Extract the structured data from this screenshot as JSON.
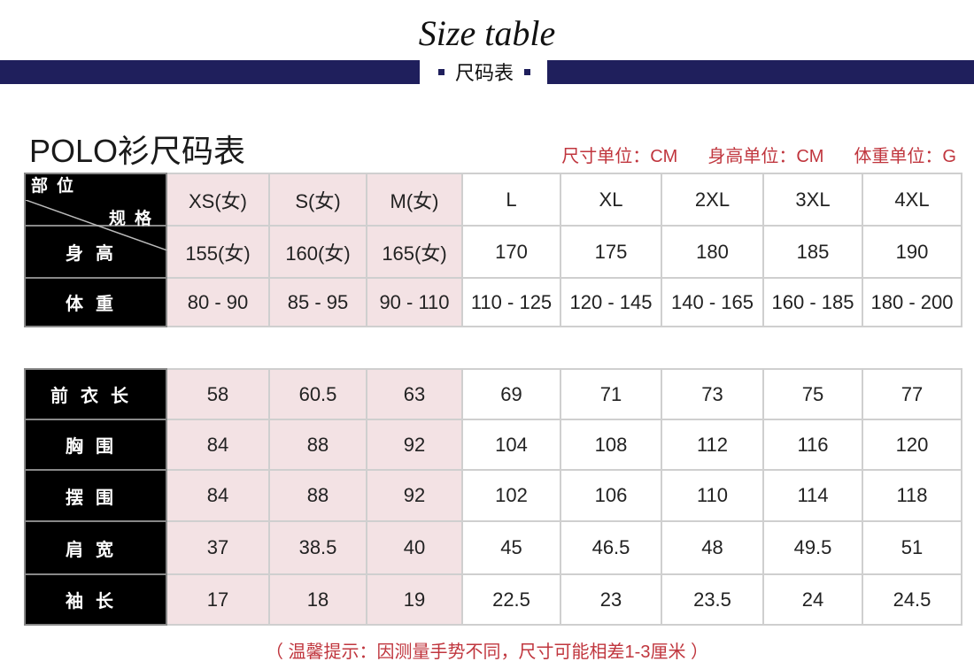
{
  "header": {
    "title_en": "Size table",
    "title_cn": "尺码表"
  },
  "table_title": "POLO衫尺码表",
  "units": [
    "尺寸单位：CM",
    "身高单位：CM",
    "体重单位：G"
  ],
  "corner": {
    "top": "规格",
    "bottom": "部位"
  },
  "sizes": [
    "XS(女)",
    "S(女)",
    "M(女)",
    "L",
    "XL",
    "2XL",
    "3XL",
    "4XL"
  ],
  "table1": [
    {
      "label": "身高",
      "values": [
        "155(女)",
        "160(女)",
        "165(女)",
        "170",
        "175",
        "180",
        "185",
        "190"
      ]
    },
    {
      "label": "体重",
      "values": [
        "80 - 90",
        "85 - 95",
        "90 - 110",
        "110 - 125",
        "120 - 145",
        "140 - 165",
        "160 - 185",
        "180 - 200"
      ]
    }
  ],
  "table2": [
    {
      "label": "前衣长",
      "values": [
        "58",
        "60.5",
        "63",
        "69",
        "71",
        "73",
        "75",
        "77"
      ]
    },
    {
      "label": "胸围",
      "values": [
        "84",
        "88",
        "92",
        "104",
        "108",
        "112",
        "116",
        "120"
      ]
    },
    {
      "label": "摆围",
      "values": [
        "84",
        "88",
        "92",
        "102",
        "106",
        "110",
        "114",
        "118"
      ]
    },
    {
      "label": "肩宽",
      "values": [
        "37",
        "38.5",
        "40",
        "45",
        "46.5",
        "48",
        "49.5",
        "51"
      ]
    },
    {
      "label": "袖长",
      "values": [
        "17",
        "18",
        "19",
        "22.5",
        "23",
        "23.5",
        "24",
        "24.5"
      ]
    }
  ],
  "note": "（ 温馨提示：因测量手势不同，尺寸可能相差1-3厘米 ）",
  "colors": {
    "navy": "#1f1f5c",
    "pink": "#f3e2e4",
    "red": "#c0363e"
  }
}
